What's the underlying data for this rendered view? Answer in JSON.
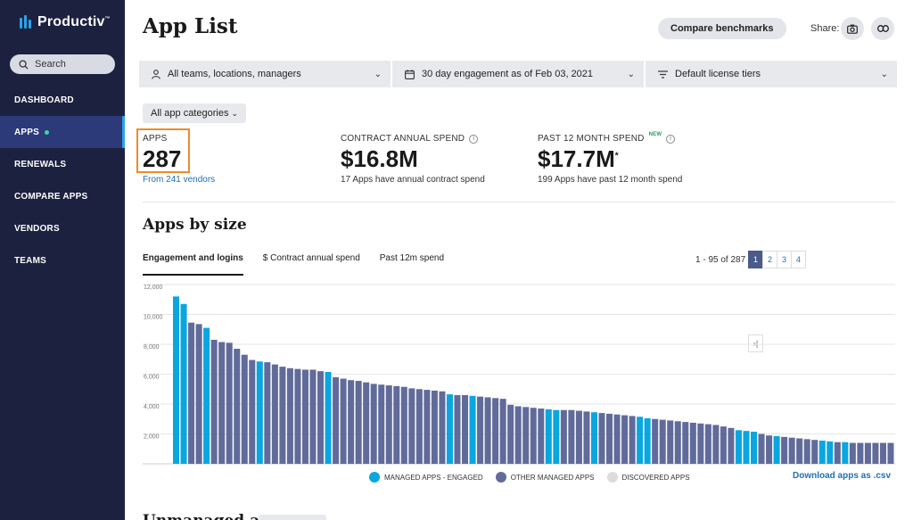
{
  "brand": {
    "name": "Productiv",
    "mark": "™"
  },
  "sidebar": {
    "search_placeholder": "Search",
    "items": [
      {
        "label": "DASHBOARD",
        "active": false
      },
      {
        "label": "APPS",
        "active": true
      },
      {
        "label": "RENEWALS",
        "active": false
      },
      {
        "label": "COMPARE APPS",
        "active": false
      },
      {
        "label": "VENDORS",
        "active": false
      },
      {
        "label": "TEAMS",
        "active": false
      }
    ]
  },
  "header": {
    "title": "App List",
    "compare_label": "Compare benchmarks",
    "share_label": "Share:"
  },
  "filters": {
    "teams": "All teams, locations, managers",
    "engagement": "30 day engagement as of Feb 03, 2021",
    "license": "Default license tiers",
    "category": "All app categories"
  },
  "kpis": {
    "apps": {
      "label": "APPS",
      "value": "287",
      "link": "From 241 vendors"
    },
    "contract": {
      "label": "CONTRACT ANNUAL SPEND",
      "value": "$16.8M",
      "sub": "17 Apps have annual contract spend"
    },
    "past12": {
      "label": "PAST 12 MONTH SPEND",
      "badge": "NEW",
      "value": "$17.7M",
      "asterisk": "*",
      "sub": "199 Apps have past 12 month spend"
    }
  },
  "section": {
    "title": "Apps by size",
    "next_title": "Unmanaged apps"
  },
  "tabs": [
    {
      "label": "Engagement and logins",
      "active": true
    },
    {
      "label": "$ Contract annual spend",
      "active": false
    },
    {
      "label": "Past 12m spend",
      "active": false
    }
  ],
  "pager": {
    "range": "1 - 95 of 287",
    "pages": [
      "1",
      "2",
      "3",
      "4"
    ],
    "current": "1",
    "first": "|‹",
    "prev": "‹",
    "next": "›",
    "last": "›|"
  },
  "colors": {
    "engaged": "#0aa6df",
    "other": "#616b9a",
    "discovered": "#dcdcdc",
    "sidebar_bg": "#1d2140",
    "highlight": "#f08a2a"
  },
  "chart_data": {
    "type": "bar",
    "ylim": [
      0,
      12000
    ],
    "yticks": [
      "12,000",
      "10,000",
      "8,000",
      "6,000",
      "4,000",
      "2,000"
    ],
    "yvalues": [
      12000,
      10000,
      8000,
      6000,
      4000,
      2000
    ],
    "grid": true,
    "legend_position": "bottom",
    "series": [
      {
        "name": "MANAGED APPS - ENGAGED"
      },
      {
        "name": "OTHER MANAGED APPS"
      },
      {
        "name": "DISCOVERED APPS"
      }
    ],
    "bars": [
      {
        "v": 11200,
        "c": 0
      },
      {
        "v": 10700,
        "c": 0
      },
      {
        "v": 9450,
        "c": 1
      },
      {
        "v": 9350,
        "c": 1
      },
      {
        "v": 9100,
        "c": 0
      },
      {
        "v": 8300,
        "c": 1
      },
      {
        "v": 8150,
        "c": 1
      },
      {
        "v": 8100,
        "c": 1
      },
      {
        "v": 7700,
        "c": 1
      },
      {
        "v": 7300,
        "c": 1
      },
      {
        "v": 6950,
        "c": 1
      },
      {
        "v": 6850,
        "c": 0
      },
      {
        "v": 6800,
        "c": 1
      },
      {
        "v": 6650,
        "c": 1
      },
      {
        "v": 6500,
        "c": 1
      },
      {
        "v": 6400,
        "c": 1
      },
      {
        "v": 6350,
        "c": 1
      },
      {
        "v": 6300,
        "c": 1
      },
      {
        "v": 6300,
        "c": 1
      },
      {
        "v": 6200,
        "c": 1
      },
      {
        "v": 6150,
        "c": 0
      },
      {
        "v": 5800,
        "c": 1
      },
      {
        "v": 5700,
        "c": 1
      },
      {
        "v": 5600,
        "c": 1
      },
      {
        "v": 5550,
        "c": 1
      },
      {
        "v": 5450,
        "c": 1
      },
      {
        "v": 5350,
        "c": 1
      },
      {
        "v": 5300,
        "c": 1
      },
      {
        "v": 5250,
        "c": 1
      },
      {
        "v": 5200,
        "c": 1
      },
      {
        "v": 5150,
        "c": 1
      },
      {
        "v": 5050,
        "c": 1
      },
      {
        "v": 5000,
        "c": 1
      },
      {
        "v": 4950,
        "c": 1
      },
      {
        "v": 4900,
        "c": 1
      },
      {
        "v": 4850,
        "c": 1
      },
      {
        "v": 4650,
        "c": 0
      },
      {
        "v": 4600,
        "c": 1
      },
      {
        "v": 4600,
        "c": 1
      },
      {
        "v": 4550,
        "c": 0
      },
      {
        "v": 4500,
        "c": 1
      },
      {
        "v": 4450,
        "c": 1
      },
      {
        "v": 4400,
        "c": 1
      },
      {
        "v": 4350,
        "c": 1
      },
      {
        "v": 3950,
        "c": 1
      },
      {
        "v": 3850,
        "c": 1
      },
      {
        "v": 3800,
        "c": 1
      },
      {
        "v": 3750,
        "c": 1
      },
      {
        "v": 3700,
        "c": 1
      },
      {
        "v": 3650,
        "c": 0
      },
      {
        "v": 3600,
        "c": 0
      },
      {
        "v": 3600,
        "c": 1
      },
      {
        "v": 3600,
        "c": 1
      },
      {
        "v": 3550,
        "c": 1
      },
      {
        "v": 3500,
        "c": 1
      },
      {
        "v": 3450,
        "c": 0
      },
      {
        "v": 3400,
        "c": 1
      },
      {
        "v": 3350,
        "c": 1
      },
      {
        "v": 3300,
        "c": 1
      },
      {
        "v": 3250,
        "c": 1
      },
      {
        "v": 3200,
        "c": 1
      },
      {
        "v": 3150,
        "c": 0
      },
      {
        "v": 3050,
        "c": 0
      },
      {
        "v": 3000,
        "c": 1
      },
      {
        "v": 2950,
        "c": 1
      },
      {
        "v": 2900,
        "c": 1
      },
      {
        "v": 2850,
        "c": 1
      },
      {
        "v": 2800,
        "c": 1
      },
      {
        "v": 2750,
        "c": 1
      },
      {
        "v": 2700,
        "c": 1
      },
      {
        "v": 2650,
        "c": 1
      },
      {
        "v": 2600,
        "c": 1
      },
      {
        "v": 2500,
        "c": 1
      },
      {
        "v": 2400,
        "c": 1
      },
      {
        "v": 2250,
        "c": 0
      },
      {
        "v": 2200,
        "c": 0
      },
      {
        "v": 2150,
        "c": 0
      },
      {
        "v": 2000,
        "c": 1
      },
      {
        "v": 1900,
        "c": 1
      },
      {
        "v": 1850,
        "c": 0
      },
      {
        "v": 1800,
        "c": 1
      },
      {
        "v": 1750,
        "c": 1
      },
      {
        "v": 1700,
        "c": 1
      },
      {
        "v": 1650,
        "c": 1
      },
      {
        "v": 1600,
        "c": 1
      },
      {
        "v": 1550,
        "c": 0
      },
      {
        "v": 1500,
        "c": 0
      },
      {
        "v": 1450,
        "c": 1
      },
      {
        "v": 1450,
        "c": 0
      },
      {
        "v": 1400,
        "c": 1
      },
      {
        "v": 1400,
        "c": 1
      },
      {
        "v": 1400,
        "c": 1
      },
      {
        "v": 1400,
        "c": 1
      },
      {
        "v": 1400,
        "c": 1
      },
      {
        "v": 1400,
        "c": 1
      }
    ]
  },
  "download_label": "Download apps as .csv"
}
